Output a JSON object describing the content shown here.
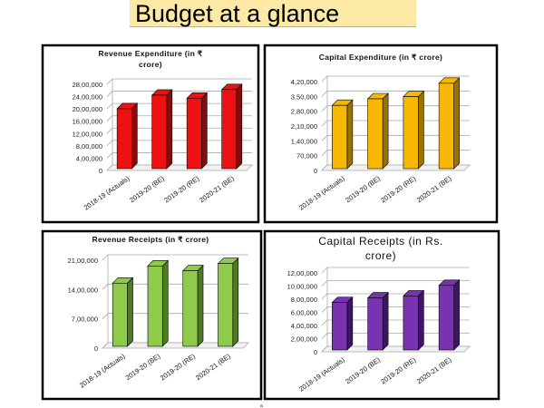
{
  "page_title": "Budget at a glance",
  "footnote": "a",
  "chart_data": [
    {
      "type": "bar",
      "title_lines": [
        "Revenue  Expenditure (in ₹",
        "crore)"
      ],
      "categories": [
        "2018-19 (Actuals)",
        "2019-20 (BE)",
        "2019-20 (RE)",
        "2020-21 (BE)"
      ],
      "values": [
        2007399,
        2447780,
        2349645,
        2630145
      ],
      "yticks": [
        "0",
        "4,00,000",
        "8,00,000",
        "12,00,000",
        "16,00,000",
        "20,00,000",
        "24,00,000",
        "28,00,000"
      ],
      "ylim": [
        0,
        2800000
      ],
      "color": "#ee1111",
      "side": "#8a0a0a",
      "grid": true
    },
    {
      "type": "bar",
      "title_lines": [
        "Capital Expenditure (in ₹ crore)"
      ],
      "categories": [
        "2018-19 (Actuals)",
        "2019-20 (BE)",
        "2019-20 (RE)",
        "2020-21 (BE)"
      ],
      "values": [
        307714,
        338569,
        348907,
        412085
      ],
      "yticks": [
        "0",
        "70,000",
        "1,40,000",
        "2,10,000",
        "2,80,000",
        "3,50,000",
        "4,20,000"
      ],
      "ylim": [
        0,
        420000
      ],
      "color": "#f6b800",
      "side": "#9a7200",
      "grid": true
    },
    {
      "type": "bar",
      "title_lines": [
        "Revenue Receipts (in ₹ crore)"
      ],
      "categories": [
        "2018-19 (Actuals)",
        "2019-20 (BE)",
        "2019-20 (RE)",
        "2020-21 (BE)"
      ],
      "values": [
        1552916,
        1962761,
        1850101,
        2020926
      ],
      "yticks": [
        "0",
        "7,00,000",
        "14,00,000",
        "21,00,000"
      ],
      "ylim": [
        0,
        2100000
      ],
      "color": "#8fcb4a",
      "side": "#4d7a22",
      "grid": true
    },
    {
      "type": "bar",
      "title_lines": [
        "Capital Receipts (in Rs.",
        "crore)"
      ],
      "categories": [
        "2018-19 (Actuals)",
        "2019-20 (BE)",
        "2019-20 (RE)",
        "2020-21 (BE)"
      ],
      "values": [
        750000,
        820000,
        850000,
        1010000
      ],
      "yticks": [
        "0",
        "2,00,000",
        "4,00,000",
        "6,00,000",
        "8,00,000",
        "10,00,000",
        "12,00,000"
      ],
      "ylim": [
        0,
        1200000
      ],
      "color": "#7a33b0",
      "side": "#3f1466",
      "grid": true
    }
  ]
}
